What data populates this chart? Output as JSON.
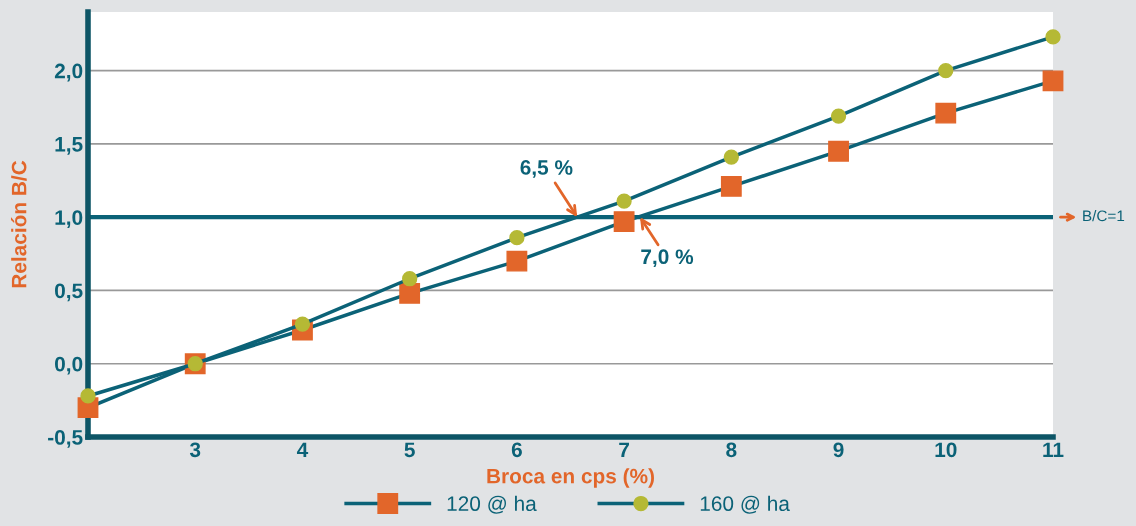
{
  "chart_data": {
    "type": "line",
    "xlabel": "Broca en cps (%)",
    "ylabel": "Relación B/C",
    "categories": [
      null,
      "3",
      "4",
      "5",
      "6",
      "7",
      "8",
      "9",
      "10",
      "11"
    ],
    "series": [
      {
        "name": "120 @ ha",
        "color": "#e2662a",
        "marker": "square",
        "values": [
          -0.3,
          0.0,
          0.23,
          0.48,
          0.7,
          0.97,
          1.21,
          1.45,
          1.71,
          1.93
        ]
      },
      {
        "name": "160 @ ha",
        "color": "#b5b935",
        "marker": "circle",
        "values": [
          -0.22,
          0.0,
          0.27,
          0.58,
          0.86,
          1.11,
          1.41,
          1.69,
          2.0,
          2.23
        ]
      }
    ],
    "ylim": [
      -0.5,
      2.4
    ],
    "yticks": [
      {
        "value": -0.5,
        "label": "-0,5"
      },
      {
        "value": 0,
        "label": "0,0"
      },
      {
        "value": 0.5,
        "label": "0,5"
      },
      {
        "value": 1,
        "label": "1,0"
      },
      {
        "value": 1.5,
        "label": "1,5"
      },
      {
        "value": 2,
        "label": "2,0"
      }
    ],
    "ref_lines": [
      {
        "axis": "y",
        "value": 1,
        "label": "B/C=1",
        "color": "#0b6277"
      }
    ],
    "annotations": [
      {
        "text": "6,5 %",
        "y": 1.0
      },
      {
        "text": "7,0 %",
        "y": 1.0
      }
    ],
    "grid": "y",
    "legend": "bottom",
    "line_style": "solid"
  }
}
